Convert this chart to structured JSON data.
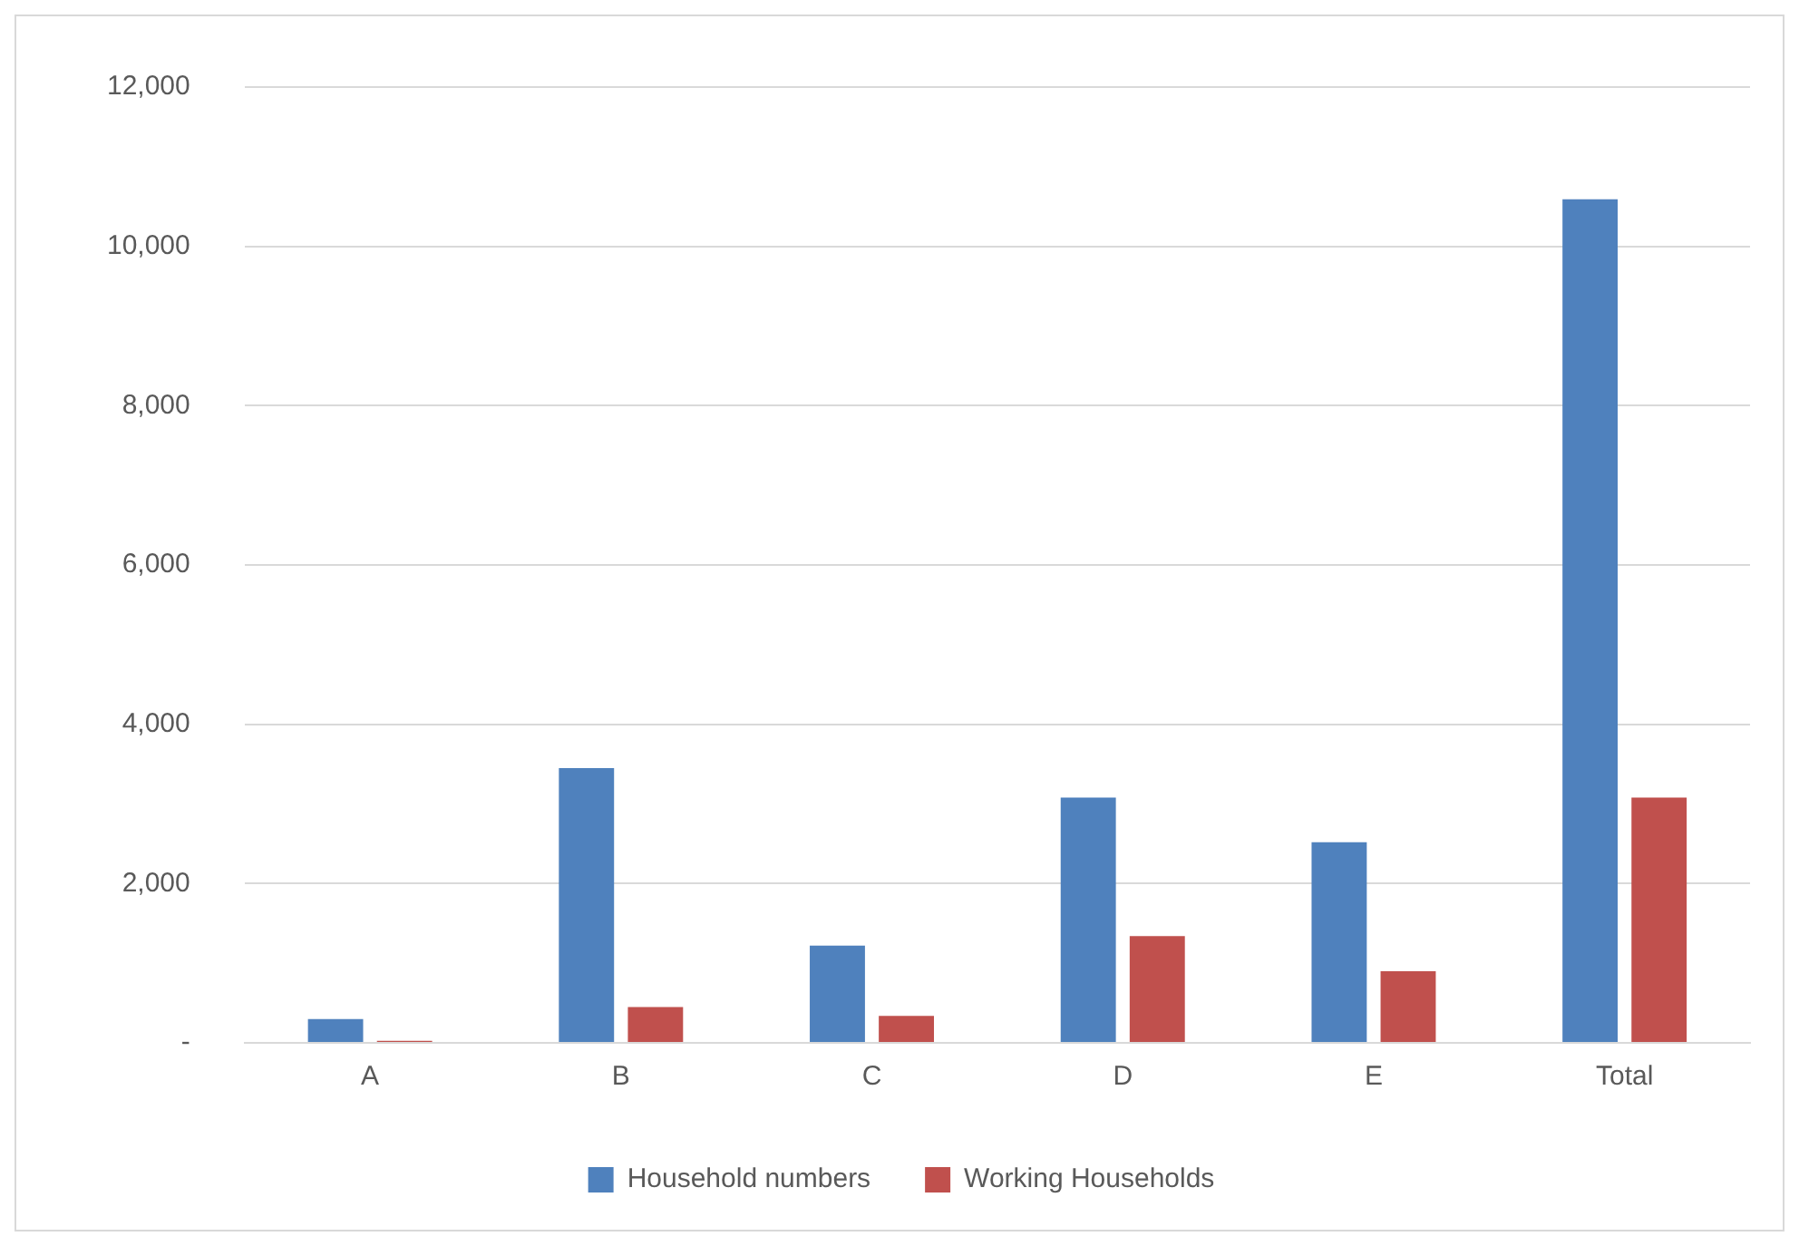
{
  "chart_data": {
    "type": "bar",
    "categories": [
      "A",
      "B",
      "C",
      "D",
      "E",
      "Total"
    ],
    "series": [
      {
        "name": "Household numbers",
        "color": "#4f81bd",
        "values": [
          300,
          3450,
          1220,
          3080,
          2520,
          10590
        ]
      },
      {
        "name": "Working Households",
        "color": "#c0504d",
        "values": [
          25,
          450,
          340,
          1340,
          900,
          3080
        ]
      }
    ],
    "ylim": [
      0,
      12000
    ],
    "yticks": [
      {
        "value": 0,
        "label": "-"
      },
      {
        "value": 2000,
        "label": "2,000"
      },
      {
        "value": 4000,
        "label": "4,000"
      },
      {
        "value": 6000,
        "label": "6,000"
      },
      {
        "value": 8000,
        "label": "8,000"
      },
      {
        "value": 10000,
        "label": "10,000"
      },
      {
        "value": 12000,
        "label": "12,000"
      }
    ],
    "grid": "y",
    "legend": "bottom"
  }
}
